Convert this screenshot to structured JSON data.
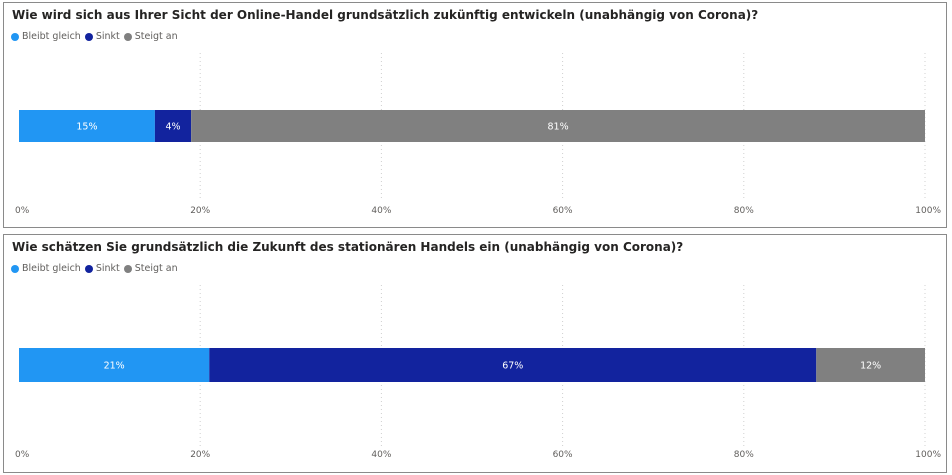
{
  "colors": {
    "bleibt": "#2196f3",
    "sinkt": "#12239e",
    "steigt": "#808080"
  },
  "chart_data": [
    {
      "type": "bar",
      "orientation": "horizontal-stacked-100",
      "title": "Wie wird sich aus Ihrer Sicht der Online-Handel grundsätzlich zukünftig entwickeln (unabhängig von Corona)?",
      "legend": [
        "Bleibt gleich",
        "Sinkt",
        "Steigt an"
      ],
      "legend_position": "top-left",
      "series": [
        {
          "name": "Bleibt gleich",
          "value": 15,
          "label": "15%",
          "color": "#2196f3"
        },
        {
          "name": "Sinkt",
          "value": 4,
          "label": "4%",
          "color": "#12239e"
        },
        {
          "name": "Steigt an",
          "value": 81,
          "label": "81%",
          "color": "#808080"
        }
      ],
      "xlim": [
        0,
        100
      ],
      "xticks": [
        "0%",
        "20%",
        "40%",
        "60%",
        "80%",
        "100%"
      ],
      "grid": "vertical dotted"
    },
    {
      "type": "bar",
      "orientation": "horizontal-stacked-100",
      "title": "Wie schätzen Sie grundsätzlich die Zukunft des stationären Handels ein (unabhängig von Corona)?",
      "legend": [
        "Bleibt gleich",
        "Sinkt",
        "Steigt an"
      ],
      "legend_position": "top-left",
      "series": [
        {
          "name": "Bleibt gleich",
          "value": 21,
          "label": "21%",
          "color": "#2196f3"
        },
        {
          "name": "Sinkt",
          "value": 67,
          "label": "67%",
          "color": "#12239e"
        },
        {
          "name": "Steigt an",
          "value": 12,
          "label": "12%",
          "color": "#808080"
        }
      ],
      "xlim": [
        0,
        100
      ],
      "xticks": [
        "0%",
        "20%",
        "40%",
        "60%",
        "80%",
        "100%"
      ],
      "grid": "vertical dotted"
    }
  ]
}
